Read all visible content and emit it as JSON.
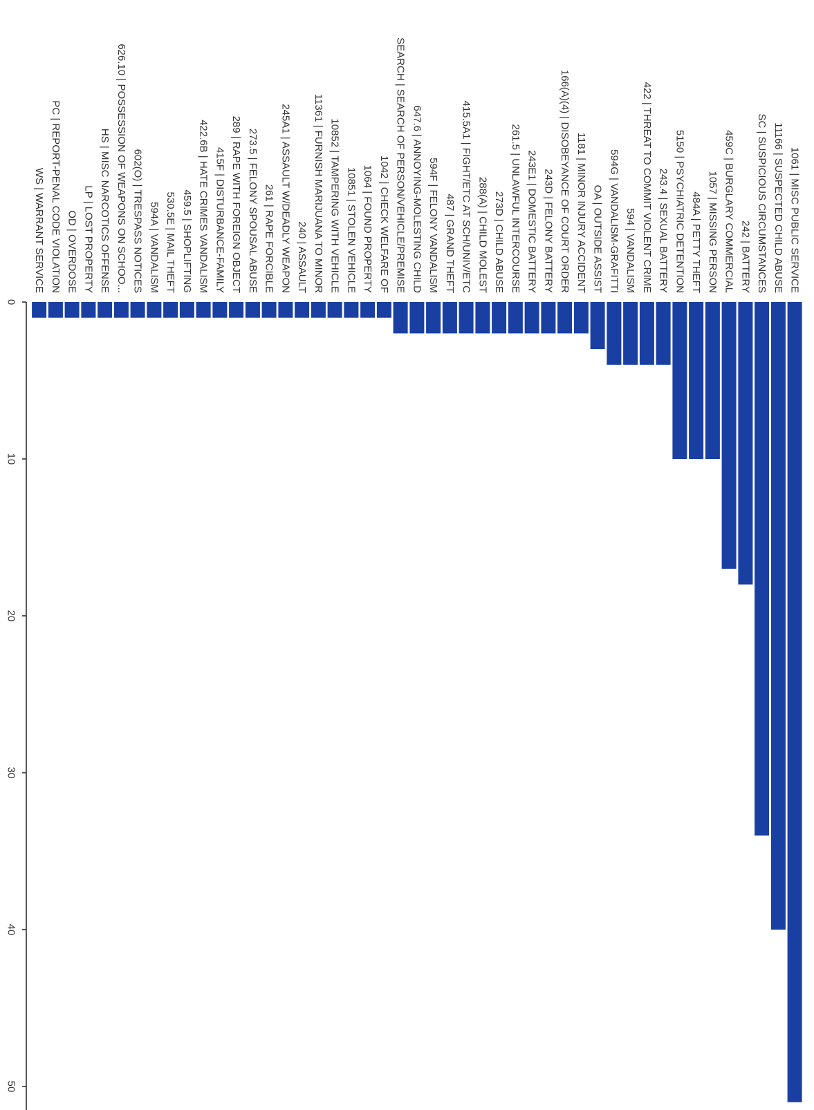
{
  "chart_data": {
    "type": "bar",
    "orientation": "rotated",
    "bar_color": "#1a3fa3",
    "title": "",
    "xlabel": "",
    "ylabel": "",
    "ylim": [
      0,
      51.5
    ],
    "ticks": [
      0,
      10,
      20,
      30,
      40,
      50
    ],
    "categories": [
      "1061 | MISC PUBLIC SERVICE",
      "11166 | SUSPECTED CHILD ABUSE",
      "SC | SUSPICIOUS CIRCUMSTANCES",
      "242 | BATTERY",
      "459C | BURGLARY COMMERCIAL",
      "1057 | MISSING PERSON",
      "484A | PETTY THEFT",
      "5150 | PSYCHIATRIC DETENTION",
      "243.4 | SEXUAL BATTERY",
      "422 | THREAT TO COMMIT VIOLENT CRIME",
      "594 | VANDALISM",
      "594G | VANDALISM-GRAFITTI",
      "OA | OUTSIDE ASSIST",
      "1181 | MINOR INJURY ACCIDENT",
      "166(A)(4) | DISOBEYANCE OF COURT ORDER",
      "243D | FELONY BATTERY",
      "243E1 | DOMESTIC BATTERY",
      "261.5 | UNLAWFUL INTERCOURSE",
      "273D | CHILD ABUSE",
      "288(A) | CHILD MOLEST",
      "415.5A1 | FIGHT/ETC AT SCH/UNIV/ETC",
      "487 | GRAND THEFT",
      "594F | FELONY VANDALISM",
      "647.6 | ANNOYING-MOLESTING CHILD",
      "SEARCH | SEARCH OF PERSON/VEHICLE/PREMISE",
      "1042 | CHECK WELFARE OF",
      "1064 | FOUND PROPERTY",
      "10851 | STOLEN VEHICLE",
      "10852 | TAMPERING WITH VEHICLE",
      "11361 | FURNISH MARIJUANA TO MINOR",
      "240 | ASSAULT",
      "245A1 | ASSAULT W/DEADLY WEAPON",
      "261 | RAPE FORCIBLE",
      "273.5 | FELONY SPOUSAL ABUSE",
      "289 | RAPE WITH FOREIGN OBJECT",
      "415F | DISTURBANCE-FAMILY",
      "422.6B | HATE CRIMES VANDALISM",
      "459.5 | SHOPLIFTING",
      "530.5E | MAIL THEFT",
      "594A | VANDALISM",
      "602(O) | TRESPASS NOTICES",
      "626.10 | POSSESSION OF WEAPONS ON SCHOO...",
      "HS | MISC NARCOTICS OFFENSE",
      "LP | LOST PROPERTY",
      "OD | OVERDOSE",
      "PC | REPORT-PENAL CODE VIOLATION",
      "WS | WARRANT SERVICE"
    ],
    "values": [
      51,
      40,
      34,
      18,
      17,
      10,
      10,
      10,
      4,
      4,
      4,
      4,
      3,
      2,
      2,
      2,
      2,
      2,
      2,
      2,
      2,
      2,
      2,
      2,
      2,
      1,
      1,
      1,
      1,
      1,
      1,
      1,
      1,
      1,
      1,
      1,
      1,
      1,
      1,
      1,
      1,
      1,
      1,
      1,
      1,
      1,
      1
    ]
  }
}
